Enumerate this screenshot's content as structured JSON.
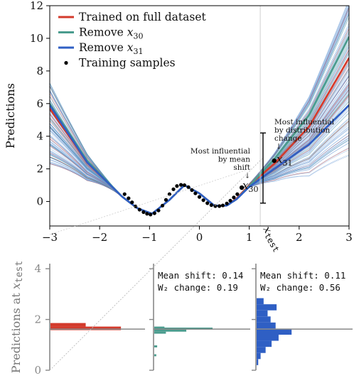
{
  "chart_data": [
    {
      "type": "line",
      "ylabel": "Predictions",
      "xlim": [
        -3,
        3
      ],
      "ylim": [
        -1.5,
        12
      ],
      "xticks": [
        "−3",
        "−2",
        "−1",
        "0",
        "1",
        "2",
        "3"
      ],
      "yticks": [
        "0",
        "2",
        "4",
        "6",
        "8",
        "10",
        "12"
      ],
      "x_test_label": "x",
      "x_test_sub": "test",
      "x_test": 1.22,
      "legend_position": "top-left",
      "legend": [
        {
          "label": "Trained on full dataset",
          "kind": "line",
          "color": "#d33a2c"
        },
        {
          "label": "Remove x",
          "sub": "30",
          "kind": "line",
          "color": "#4a9c8e"
        },
        {
          "label": "Remove x",
          "sub": "31",
          "kind": "line",
          "color": "#2f5fc4"
        },
        {
          "label": "Training samples",
          "kind": "dots",
          "color": "#000000"
        }
      ],
      "series": [
        {
          "key": "full",
          "color": "#d33a2c",
          "x": [
            -3,
            -2.25,
            -1.55,
            -1.25,
            -0.95,
            -0.6,
            -0.3,
            0.0,
            0.3,
            0.55,
            0.75,
            1.0,
            1.5,
            2.2,
            3.0
          ],
          "y": [
            5.7,
            2.4,
            0.3,
            -0.4,
            -0.75,
            0.1,
            1.0,
            0.5,
            -0.25,
            -0.25,
            0.2,
            1.0,
            2.3,
            4.6,
            8.8
          ]
        },
        {
          "key": "remove_x30",
          "color": "#4a9c8e",
          "x": [
            -3,
            -2.25,
            -1.55,
            -1.25,
            -0.95,
            -0.6,
            -0.3,
            0.0,
            0.3,
            0.55,
            0.75,
            1.0,
            1.5,
            2.2,
            3.0
          ],
          "y": [
            6.0,
            2.5,
            0.3,
            -0.4,
            -0.75,
            0.1,
            1.0,
            0.5,
            -0.25,
            -0.25,
            0.15,
            0.95,
            2.6,
            5.3,
            10.1
          ]
        },
        {
          "key": "remove_x31",
          "color": "#2f5fc4",
          "x": [
            -3,
            -2.25,
            -1.55,
            -1.25,
            -0.95,
            -0.6,
            -0.3,
            0.0,
            0.3,
            0.55,
            0.75,
            1.0,
            1.5,
            2.2,
            3.0
          ],
          "y": [
            5.9,
            2.4,
            0.3,
            -0.4,
            -0.75,
            0.1,
            1.0,
            0.5,
            -0.25,
            -0.25,
            0.15,
            0.9,
            2.0,
            3.5,
            5.9
          ]
        }
      ],
      "ensemble": {
        "count": 140,
        "color": "#6a9bd6",
        "spread_left": [
          2.3,
          7.3
        ],
        "spread_right": [
          2.8,
          12.6
        ],
        "mixed_colors": [
          "#d33a2c",
          "#4a9c8e"
        ]
      },
      "samples": {
        "x": [
          -1.5,
          -1.42,
          -1.35,
          -1.28,
          -1.2,
          -1.12,
          -1.05,
          -0.98,
          -0.9,
          -0.82,
          -0.74,
          -0.67,
          -0.6,
          -0.52,
          -0.45,
          -0.37,
          -0.3,
          -0.22,
          -0.15,
          -0.08,
          0.0,
          0.08,
          0.16,
          0.24,
          0.32,
          0.4,
          0.47,
          0.55,
          0.62,
          0.69,
          0.76,
          0.85,
          1.5
        ],
        "y": [
          0.45,
          0.2,
          -0.05,
          -0.3,
          -0.5,
          -0.65,
          -0.75,
          -0.8,
          -0.72,
          -0.55,
          -0.25,
          0.1,
          0.45,
          0.75,
          0.95,
          1.02,
          1.0,
          0.88,
          0.7,
          0.5,
          0.28,
          0.08,
          -0.1,
          -0.22,
          -0.28,
          -0.28,
          -0.24,
          -0.12,
          0.05,
          0.25,
          0.45,
          0.85,
          2.5
        ]
      },
      "highlight_points": [
        {
          "name": "x",
          "sub": "30",
          "x": 0.85,
          "y": 0.85
        },
        {
          "name": "x",
          "sub": "31",
          "x": 1.5,
          "y": 2.5
        }
      ],
      "annotations": [
        {
          "lines": [
            "Most influential",
            "by mean",
            "shift",
            "↓"
          ]
        },
        {
          "lines": [
            "Most influential",
            "by distribution",
            "change",
            "↓"
          ]
        }
      ],
      "test_range": [
        -0.1,
        4.2
      ]
    },
    {
      "type": "bar",
      "orientation": "horizontal",
      "ylabel": "Predictions at",
      "ylabel_sub": "x_test",
      "ylabel_var": "x",
      "ylabel_var_sub": "test",
      "ylim": [
        0,
        4.2
      ],
      "yticks": [
        "0",
        "2",
        "4"
      ],
      "reference_line": 1.62,
      "panels": [
        {
          "key": "full",
          "color": "#d33a2c",
          "bins": [
            {
              "y0": 1.72,
              "y1": 1.86,
              "count": 1.0
            },
            {
              "y0": 1.58,
              "y1": 1.72,
              "count": 2.0
            }
          ],
          "stats": []
        },
        {
          "key": "remove_x30",
          "color": "#4a9c8e",
          "bins": [
            {
              "y0": 1.68,
              "y1": 1.72,
              "count": 0.35
            },
            {
              "y0": 1.6,
              "y1": 1.68,
              "count": 2.0
            },
            {
              "y0": 1.52,
              "y1": 1.6,
              "count": 1.1
            },
            {
              "y0": 1.44,
              "y1": 1.52,
              "count": 0.4
            },
            {
              "y0": 0.9,
              "y1": 0.98,
              "count": 0.1
            },
            {
              "y0": 0.55,
              "y1": 0.63,
              "count": 0.07
            }
          ],
          "stats": [
            {
              "label": "Mean shift:",
              "value": "0.14"
            },
            {
              "label": "W₂ change:",
              "value": "0.19"
            }
          ]
        },
        {
          "key": "remove_x31",
          "color": "#2f5fc4",
          "bins": [
            {
              "y0": 2.6,
              "y1": 2.84,
              "count": 0.35
            },
            {
              "y0": 2.36,
              "y1": 2.6,
              "count": 1.0
            },
            {
              "y0": 2.12,
              "y1": 2.36,
              "count": 0.55
            },
            {
              "y0": 1.88,
              "y1": 2.12,
              "count": 0.7
            },
            {
              "y0": 1.64,
              "y1": 1.88,
              "count": 0.95
            },
            {
              "y0": 1.4,
              "y1": 1.64,
              "count": 1.75
            },
            {
              "y0": 1.16,
              "y1": 1.4,
              "count": 1.1
            },
            {
              "y0": 0.92,
              "y1": 1.16,
              "count": 0.75
            },
            {
              "y0": 0.68,
              "y1": 0.92,
              "count": 0.45
            },
            {
              "y0": 0.44,
              "y1": 0.68,
              "count": 0.2
            },
            {
              "y0": 0.2,
              "y1": 0.44,
              "count": 0.08
            }
          ],
          "stats": [
            {
              "label": "Mean shift:",
              "value": "0.11"
            },
            {
              "label": "W₂ change:",
              "value": "0.56"
            }
          ]
        }
      ]
    }
  ]
}
